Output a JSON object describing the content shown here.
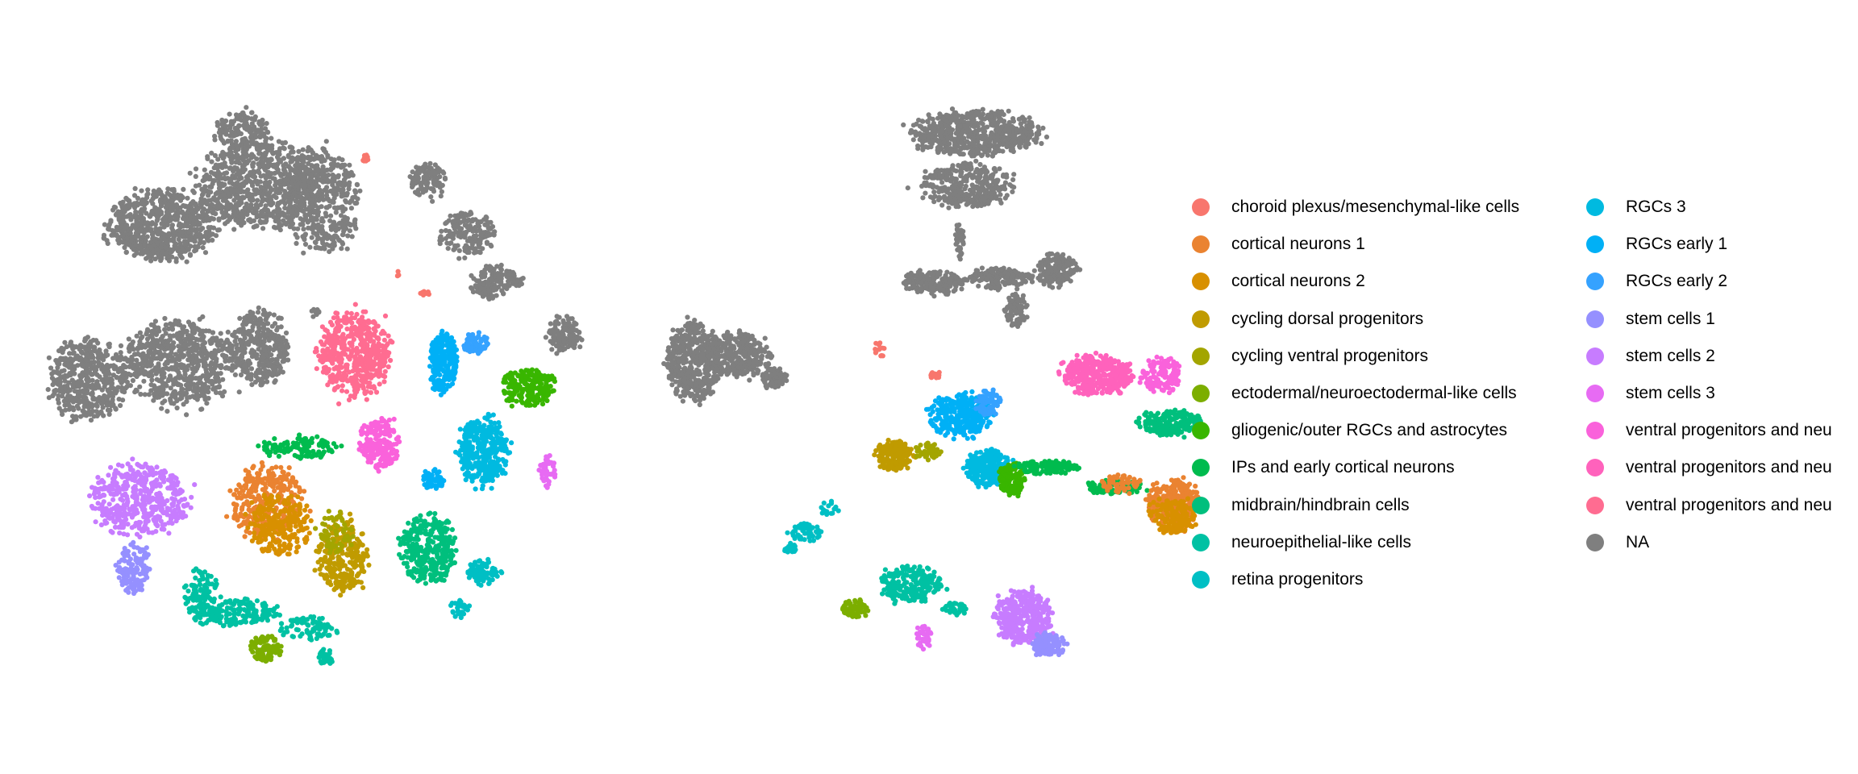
{
  "chart_data": {
    "type": "scatter",
    "title": "",
    "xlabel": "",
    "ylabel": "",
    "axes_visible": false,
    "grid": false,
    "legend_placement": "right",
    "legend_columns": 2,
    "categories": [
      {
        "label": "choroid plexus/mesenchymal-like cells",
        "color": "#F8766D"
      },
      {
        "label": "cortical neurons 1",
        "color": "#EA8331"
      },
      {
        "label": "cortical neurons 2",
        "color": "#D89000"
      },
      {
        "label": "cycling dorsal progenitors",
        "color": "#C09B00"
      },
      {
        "label": "cycling ventral progenitors",
        "color": "#A3A500"
      },
      {
        "label": "ectodermal/neuroectodermal-like cells",
        "color": "#7CAE00"
      },
      {
        "label": "gliogenic/outer RGCs and astrocytes",
        "color": "#39B600"
      },
      {
        "label": "IPs and early cortical neurons",
        "color": "#00BB4E"
      },
      {
        "label": "midbrain/hindbrain cells",
        "color": "#00BF7D"
      },
      {
        "label": "neuroepithelial-like cells",
        "color": "#00C1A3"
      },
      {
        "label": "retina progenitors",
        "color": "#00BFC4"
      },
      {
        "label": "RGCs 3",
        "color": "#00BAE0"
      },
      {
        "label": "RGCs early 1",
        "color": "#00B0F6"
      },
      {
        "label": "RGCs early 2",
        "color": "#35A2FF"
      },
      {
        "label": "stem cells 1",
        "color": "#9590FF"
      },
      {
        "label": "stem cells 2",
        "color": "#C77CFF"
      },
      {
        "label": "stem cells 3",
        "color": "#E76BF3"
      },
      {
        "label": "ventral progenitors and neu",
        "color": "#FA62DB"
      },
      {
        "label": "ventral progenitors and neu",
        "color": "#FF62BC"
      },
      {
        "label": "ventral progenitors and neu",
        "color": "#FF6C91"
      },
      {
        "label": "NA",
        "color": "#7F7F7F"
      }
    ],
    "panels": [
      {
        "clusters": [
          [
            20,
            -20,
            20,
            6,
            4,
            700
          ],
          [
            20,
            -8,
            25,
            7,
            5,
            800
          ],
          [
            20,
            0,
            23,
            4,
            6,
            450
          ],
          [
            20,
            -10,
            32,
            3,
            2,
            150
          ],
          [
            20,
            -29,
            1,
            4.5,
            4.5,
            500
          ],
          [
            20,
            -18,
            3,
            6,
            5,
            650
          ],
          [
            20,
            -8,
            5,
            3.5,
            4.5,
            350
          ],
          [
            20,
            13,
            25.5,
            2,
            2,
            110
          ],
          [
            20,
            18,
            19,
            3,
            2.5,
            170
          ],
          [
            20,
            21.5,
            13,
            3,
            2,
            150
          ],
          [
            20,
            30,
            6.5,
            1.8,
            2.2,
            110
          ],
          [
            20,
            -1,
            9.3,
            0.6,
            0.5,
            8
          ],
          [
            0,
            5.4,
            28.4,
            0.4,
            0.6,
            10
          ],
          [
            0,
            12.7,
            11.6,
            0.6,
            0.3,
            10
          ],
          [
            0,
            9.3,
            14.1,
            0.2,
            0.4,
            4
          ],
          [
            19,
            4,
            4,
            4,
            5,
            500
          ],
          [
            17,
            7,
            -7,
            2.2,
            3,
            200
          ],
          [
            12,
            15,
            3,
            1.5,
            3.5,
            250
          ],
          [
            12,
            13.7,
            -11.5,
            1.3,
            1.2,
            50
          ],
          [
            13,
            19,
            5.4,
            1.5,
            1.2,
            60
          ],
          [
            6,
            25.5,
            0,
            3,
            2.2,
            200
          ],
          [
            11,
            20,
            -8,
            2.8,
            4,
            350
          ],
          [
            16,
            28,
            -10.5,
            1,
            1.8,
            50
          ],
          [
            15,
            -22.5,
            -14,
            5.5,
            4,
            450
          ],
          [
            14,
            -23.5,
            -22.5,
            1.8,
            2.8,
            120
          ],
          [
            1,
            -7,
            -14,
            4,
            4,
            300
          ],
          [
            2,
            -5.5,
            -17,
            3.5,
            3.5,
            220
          ],
          [
            7,
            -3,
            -7.5,
            4.5,
            1.2,
            120
          ],
          [
            3,
            2.5,
            -21,
            3,
            4,
            280
          ],
          [
            4,
            1.5,
            -18,
            2,
            2.5,
            60
          ],
          [
            8,
            13,
            -20,
            3,
            4,
            320
          ],
          [
            10,
            20,
            -23,
            1.8,
            1.5,
            80
          ],
          [
            10,
            17,
            -27.5,
            1.2,
            1,
            30
          ],
          [
            9,
            -15,
            -26,
            2,
            3,
            120
          ],
          [
            9,
            -10,
            -28,
            4,
            1.5,
            150
          ],
          [
            9,
            -2,
            -30,
            3,
            1.5,
            80
          ],
          [
            9,
            0.5,
            -33.5,
            1,
            1,
            25
          ],
          [
            5,
            -7,
            -32.5,
            1.8,
            1.5,
            90
          ]
        ]
      },
      {
        "clusters": [
          [
            20,
            6,
            31.5,
            7.5,
            2.5,
            600
          ],
          [
            20,
            5,
            25,
            5.5,
            2.5,
            350
          ],
          [
            20,
            4,
            18,
            0.5,
            2,
            40
          ],
          [
            20,
            1,
            13,
            3.5,
            1.4,
            200
          ],
          [
            20,
            9,
            13.5,
            3.5,
            1.2,
            160
          ],
          [
            20,
            16,
            14.5,
            2.2,
            1.8,
            180
          ],
          [
            20,
            11,
            9.5,
            1.2,
            1.8,
            80
          ],
          [
            20,
            -29,
            3,
            3,
            4.5,
            450
          ],
          [
            20,
            -24,
            4,
            4,
            2.5,
            350
          ],
          [
            20,
            -19,
            1,
            1.5,
            1.2,
            80
          ],
          [
            0,
            -6,
            4.5,
            0.8,
            1,
            12
          ],
          [
            0,
            1,
            1.5,
            0.6,
            0.4,
            20
          ],
          [
            12,
            4,
            -3.5,
            3.5,
            2.5,
            300
          ],
          [
            13,
            7.5,
            -2,
            1.5,
            1.5,
            80
          ],
          [
            3,
            -4,
            -8.5,
            2.2,
            1.8,
            200
          ],
          [
            4,
            0,
            -8,
            1.5,
            1,
            50
          ],
          [
            11,
            7.5,
            -10,
            2.5,
            2,
            250
          ],
          [
            6,
            10.5,
            -11.5,
            1.4,
            1.8,
            180
          ],
          [
            7,
            15,
            -10,
            3.5,
            0.8,
            110
          ],
          [
            7,
            23,
            -12.5,
            3.5,
            0.8,
            90
          ],
          [
            1,
            30.5,
            -14.5,
            3,
            2.8,
            300
          ],
          [
            2,
            30.5,
            -16,
            2.5,
            2,
            150
          ],
          [
            1,
            24,
            -12,
            2.5,
            1,
            60
          ],
          [
            18,
            21,
            1.5,
            4,
            2.2,
            350
          ],
          [
            17,
            29,
            1.5,
            2.2,
            2,
            130
          ],
          [
            8,
            30,
            -4.5,
            3.5,
            1.5,
            200
          ],
          [
            10,
            -15,
            -18,
            1.8,
            1,
            60
          ],
          [
            10,
            -17,
            -20,
            0.8,
            0.6,
            20
          ],
          [
            10,
            -12,
            -15,
            1,
            1,
            15
          ],
          [
            9,
            -2,
            -24.5,
            3.5,
            2,
            220
          ],
          [
            9,
            3.5,
            -27.5,
            1.5,
            0.8,
            40
          ],
          [
            5,
            -9,
            -27.5,
            1.5,
            1,
            80
          ],
          [
            15,
            12,
            -28.5,
            3.2,
            3,
            400
          ],
          [
            14,
            15,
            -32,
            2,
            1.5,
            100
          ],
          [
            16,
            -0.5,
            -31,
            0.8,
            1.5,
            40
          ]
        ]
      }
    ]
  }
}
